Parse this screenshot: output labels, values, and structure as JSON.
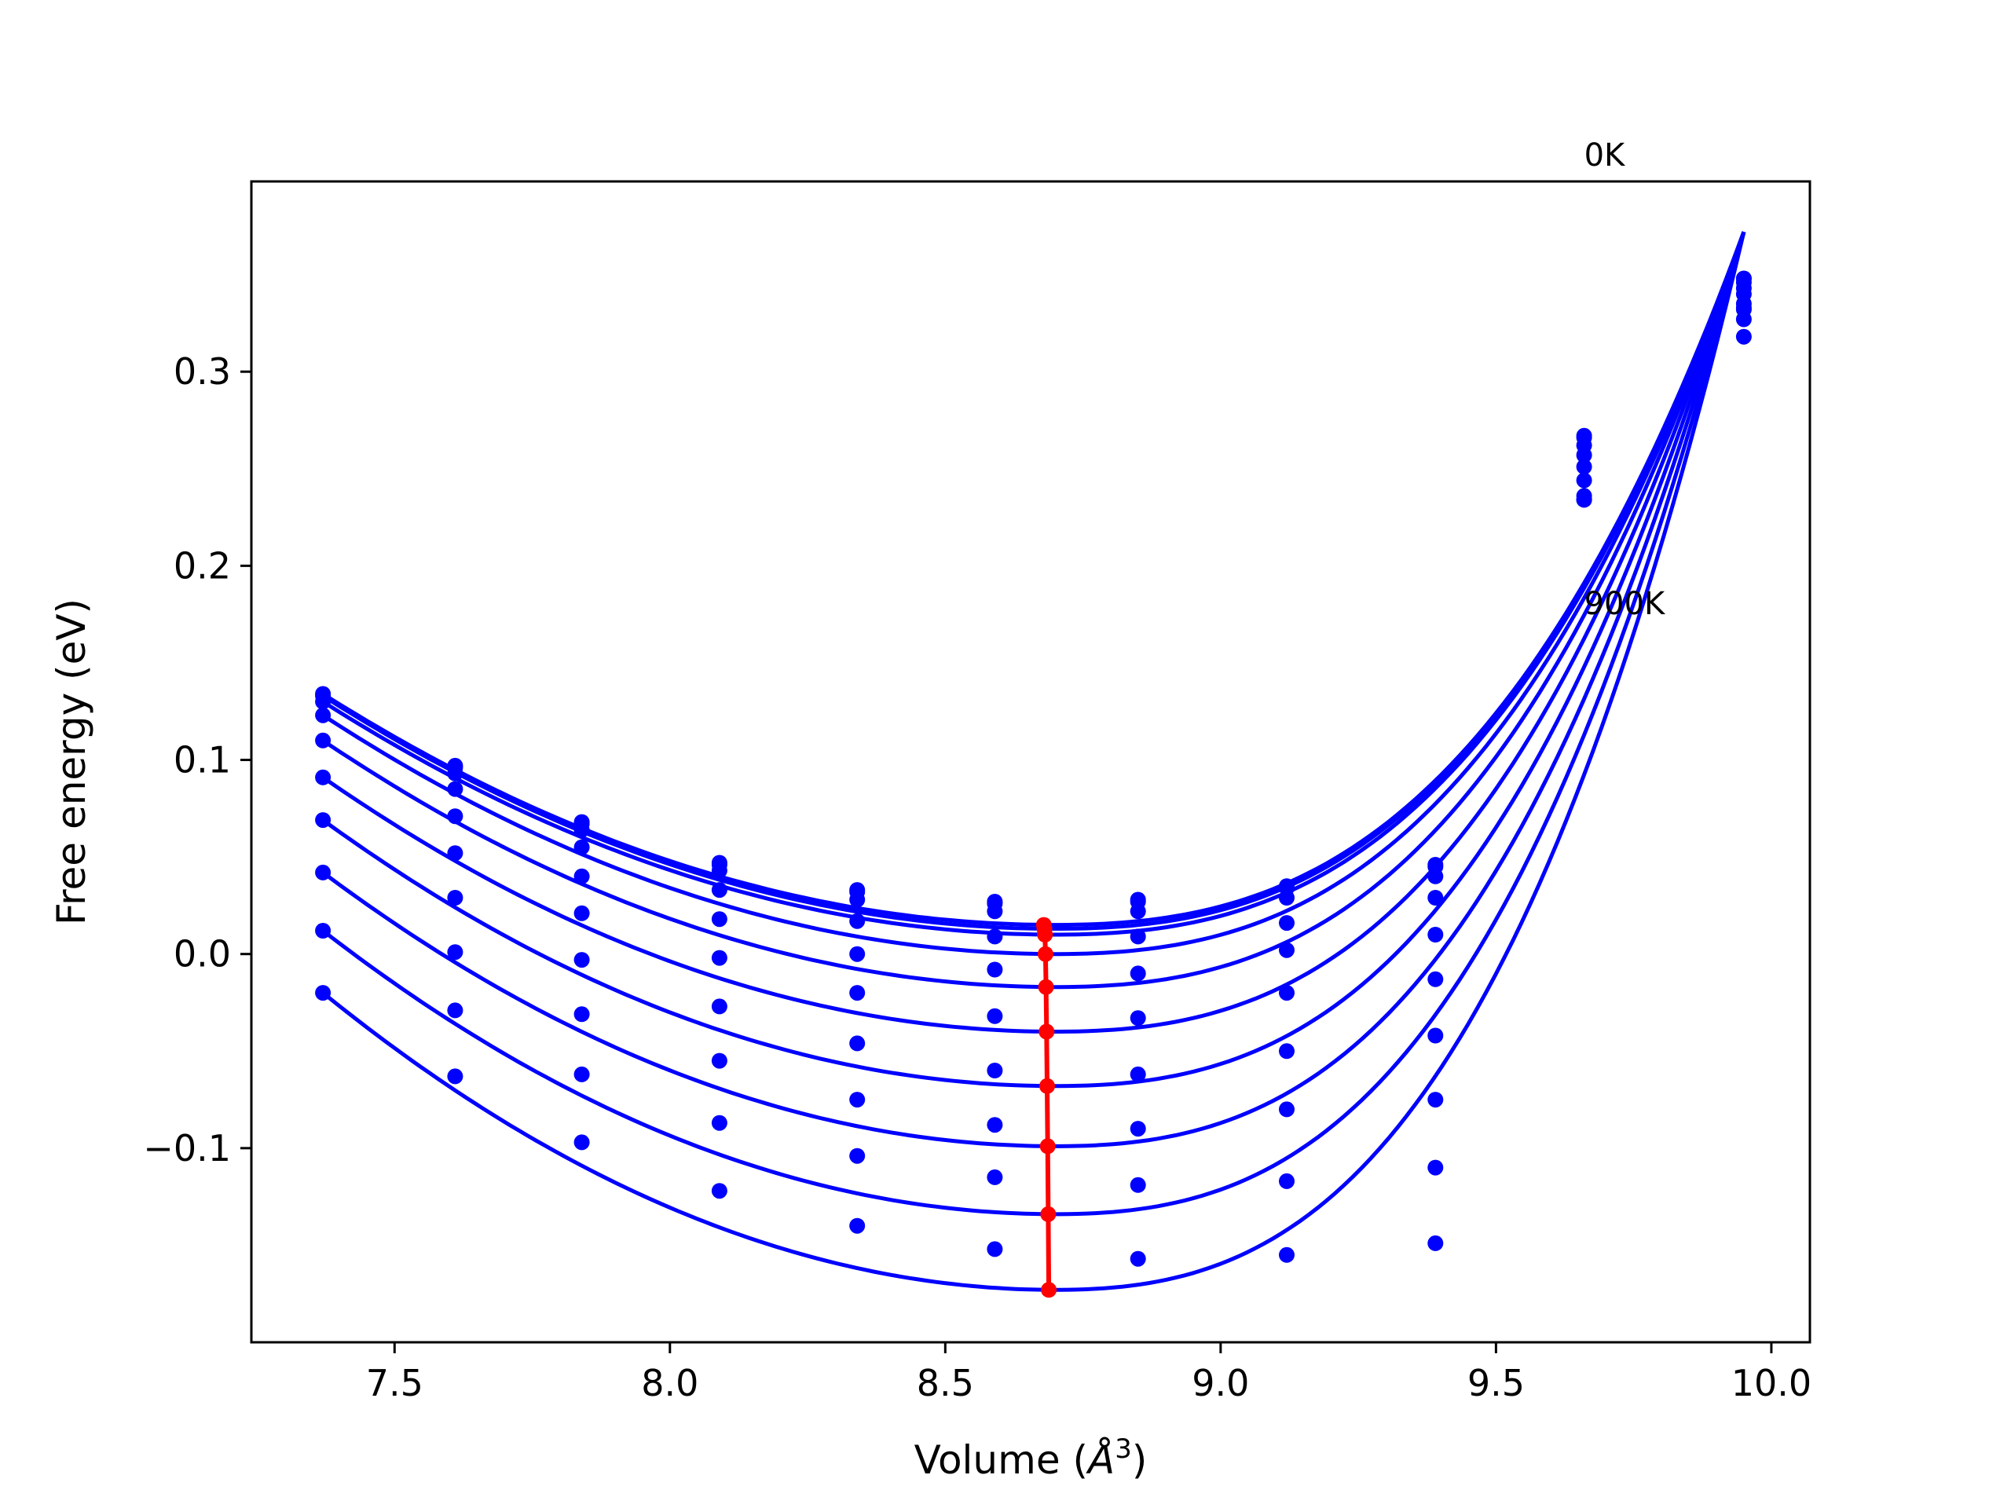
{
  "chart_data": {
    "type": "line",
    "title": "",
    "xlabel_prefix": "Volume (",
    "xlabel_symbol": "Å",
    "xlabel_sup": "3",
    "xlabel_suffix": ")",
    "ylabel": "Free energy (eV)",
    "xlim": [
      7.24,
      10.07
    ],
    "ylim": [
      -0.2,
      0.398
    ],
    "xticks": [
      7.5,
      8.0,
      8.5,
      9.0,
      9.5,
      10.0
    ],
    "xtick_labels": [
      "7.5",
      "8.0",
      "8.5",
      "9.0",
      "9.5",
      "10.0"
    ],
    "yticks": [
      -0.1,
      0.0,
      0.1,
      0.2,
      0.3
    ],
    "ytick_labels": [
      "−0.1",
      "0.0",
      "0.1",
      "0.2",
      "0.3"
    ],
    "grid": false,
    "legend": "none",
    "annotations": [
      {
        "text": "0K",
        "x": 9.66,
        "y": 0.406
      },
      {
        "text": "900K",
        "x": 9.66,
        "y": 0.175
      }
    ],
    "point_volumes": [
      7.37,
      7.61,
      7.84,
      8.09,
      8.34,
      8.59,
      8.85,
      9.12,
      9.39,
      9.66,
      9.95
    ],
    "series": [
      {
        "points": [
          0.134,
          0.097,
          0.068,
          0.047,
          0.033,
          0.027,
          0.028,
          0.035,
          0.046,
          0.267,
          0.348
        ]
      },
      {
        "points": [
          0.133,
          0.096,
          0.067,
          0.046,
          0.032,
          0.026,
          0.027,
          0.034,
          0.045,
          0.266,
          0.348
        ]
      },
      {
        "points": [
          0.13,
          0.093,
          0.064,
          0.043,
          0.028,
          0.022,
          0.022,
          0.029,
          0.04,
          0.262,
          0.346
        ]
      },
      {
        "points": [
          0.123,
          0.085,
          0.055,
          0.033,
          0.017,
          0.009,
          0.009,
          0.016,
          0.029,
          0.257,
          0.343
        ]
      },
      {
        "points": [
          0.11,
          0.071,
          0.04,
          0.018,
          0.0,
          -0.008,
          -0.01,
          0.002,
          0.01,
          0.251,
          0.34
        ]
      },
      {
        "points": [
          0.091,
          0.052,
          0.021,
          -0.002,
          -0.02,
          -0.032,
          -0.033,
          -0.02,
          -0.013,
          0.244,
          0.335
        ]
      },
      {
        "points": [
          0.069,
          0.029,
          -0.003,
          -0.027,
          -0.046,
          -0.06,
          -0.062,
          -0.05,
          -0.042,
          0.236,
          0.333
        ]
      },
      {
        "points": [
          0.042,
          0.001,
          -0.031,
          -0.055,
          -0.075,
          -0.088,
          -0.09,
          -0.08,
          -0.075,
          0.234,
          0.332
        ]
      },
      {
        "points": [
          0.012,
          -0.029,
          -0.062,
          -0.087,
          -0.104,
          -0.115,
          -0.119,
          -0.117,
          -0.11,
          0.234,
          0.327
        ]
      },
      {
        "points": [
          -0.02,
          -0.063,
          -0.097,
          -0.122,
          -0.14,
          -0.152,
          -0.157,
          -0.155,
          -0.149,
          0.234,
          0.318
        ]
      }
    ],
    "fits": [
      {
        "min_v": 8.7,
        "min_f": 0.015
      },
      {
        "min_v": 8.7,
        "min_f": 0.013
      },
      {
        "min_v": 8.7,
        "min_f": 0.01
      },
      {
        "min_v": 8.7,
        "min_f": 0.0
      },
      {
        "min_v": 8.7,
        "min_f": -0.017
      },
      {
        "min_v": 8.7,
        "min_f": -0.04
      },
      {
        "min_v": 8.7,
        "min_f": -0.068
      },
      {
        "min_v": 8.7,
        "min_f": -0.099
      },
      {
        "min_v": 8.7,
        "min_f": -0.134
      },
      {
        "min_v": 8.7,
        "min_f": -0.173
      }
    ],
    "fit_volume_range": [
      7.37,
      9.95
    ],
    "fit_end_value": 0.372,
    "minimum_path": {
      "volumes": [
        8.679,
        8.68,
        8.681,
        8.682,
        8.683,
        8.684,
        8.685,
        8.686,
        8.687,
        8.688
      ],
      "energies": [
        0.015,
        0.013,
        0.01,
        0.0,
        -0.017,
        -0.04,
        -0.068,
        -0.099,
        -0.134,
        -0.173
      ]
    },
    "colors": {
      "series": "#0000ff",
      "minimum_path": "#ff0000",
      "axes": "#000000"
    }
  }
}
